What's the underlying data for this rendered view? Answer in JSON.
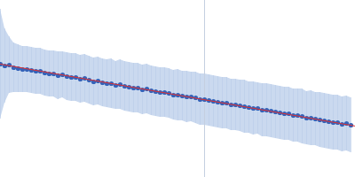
{
  "chart_data": {
    "type": "scatter",
    "x": [
      0,
      5,
      10,
      15,
      20,
      25,
      30,
      35,
      40,
      45,
      50,
      55,
      60,
      65,
      70,
      75,
      80,
      85,
      90,
      95,
      100,
      105,
      110,
      115,
      120,
      125,
      130,
      135,
      140,
      145,
      150,
      155,
      160,
      165,
      170,
      175,
      180,
      185,
      190,
      195,
      200,
      205,
      210,
      215,
      220,
      225,
      230,
      235,
      240,
      245,
      250,
      255,
      260,
      265,
      270,
      275,
      280,
      285,
      290,
      295,
      300,
      305,
      310,
      315,
      320,
      325,
      330,
      335,
      340,
      345,
      350,
      355,
      360,
      365,
      370,
      375,
      380,
      385,
      390,
      395
    ],
    "values": [
      128,
      126,
      127,
      124,
      123,
      122,
      122,
      121,
      120,
      120,
      118,
      117,
      117,
      115,
      116,
      114,
      113,
      113,
      111,
      112,
      110,
      108,
      109,
      107,
      106,
      106,
      104,
      105,
      103,
      102,
      101,
      101,
      99,
      100,
      98,
      97,
      96,
      96,
      95,
      93,
      93,
      92,
      91,
      91,
      90,
      88,
      88,
      87,
      86,
      85,
      84,
      84,
      82,
      82,
      81,
      80,
      79,
      78,
      78,
      76,
      76,
      75,
      74,
      73,
      72,
      72,
      70,
      70,
      69,
      67,
      67,
      66,
      65,
      64,
      63,
      62,
      62,
      60,
      61,
      59
    ],
    "errors": [
      62,
      42,
      32,
      28,
      27,
      26,
      26,
      26,
      26,
      26,
      26,
      26,
      26,
      27,
      26,
      27,
      27,
      27,
      27,
      27,
      27,
      27,
      27,
      27,
      27,
      28,
      27,
      28,
      28,
      28,
      28,
      28,
      28,
      28,
      28,
      28,
      28,
      28,
      28,
      28,
      29,
      28,
      29,
      28,
      29,
      29,
      29,
      29,
      29,
      29,
      29,
      29,
      29,
      29,
      29,
      30,
      29,
      30,
      29,
      30,
      30,
      30,
      30,
      30,
      30,
      30,
      30,
      30,
      31,
      30,
      31,
      30,
      31,
      31,
      31,
      31,
      31,
      31,
      31,
      31
    ],
    "color": "#3563b9",
    "fit": {
      "x": [
        0,
        400
      ],
      "values": [
        128,
        58
      ],
      "color": "#e03030"
    },
    "reference_x": 230,
    "xlim": [
      0,
      400
    ],
    "ylim": [
      0,
      200
    ],
    "grid": false,
    "tick_labels": false
  }
}
